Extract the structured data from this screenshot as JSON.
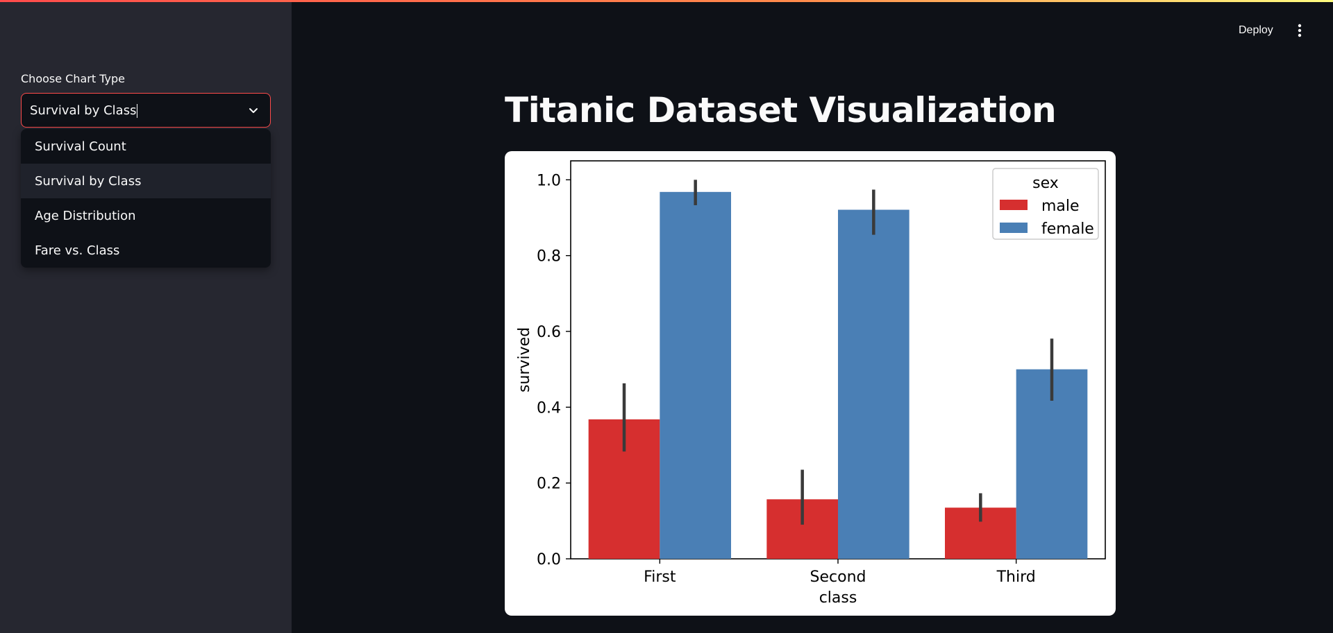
{
  "app": {
    "deploy_label": "Deploy",
    "menu_icon": "more-vertical-icon",
    "accent_color": "#ff4b4b"
  },
  "sidebar": {
    "select_label": "Choose Chart Type",
    "select_value": "Survival by Class",
    "chevron_icon": "chevron-down-icon",
    "options": [
      {
        "label": "Survival Count"
      },
      {
        "label": "Survival by Class"
      },
      {
        "label": "Age Distribution"
      },
      {
        "label": "Fare vs. Class"
      }
    ]
  },
  "main": {
    "title": "Titanic Dataset Visualization"
  },
  "chart_data": {
    "type": "bar",
    "categories": [
      "First",
      "Second",
      "Third"
    ],
    "series": [
      {
        "name": "male",
        "color": "#d62f2f",
        "values": [
          0.368,
          0.157,
          0.135
        ],
        "ci": [
          [
            0.283,
            0.463
          ],
          [
            0.09,
            0.235
          ],
          [
            0.098,
            0.173
          ]
        ]
      },
      {
        "name": "female",
        "color": "#4a7fb5",
        "values": [
          0.968,
          0.921,
          0.5
        ],
        "ci": [
          [
            0.933,
            1.0
          ],
          [
            0.855,
            0.974
          ],
          [
            0.417,
            0.581
          ]
        ]
      }
    ],
    "xlabel": "class",
    "ylabel": "survived",
    "ylim": [
      0,
      1.05
    ],
    "yticks": [
      "0.0",
      "0.2",
      "0.4",
      "0.6",
      "0.8",
      "1.0"
    ],
    "legend": {
      "title": "sex",
      "placement": "top-right"
    },
    "grid": false
  }
}
